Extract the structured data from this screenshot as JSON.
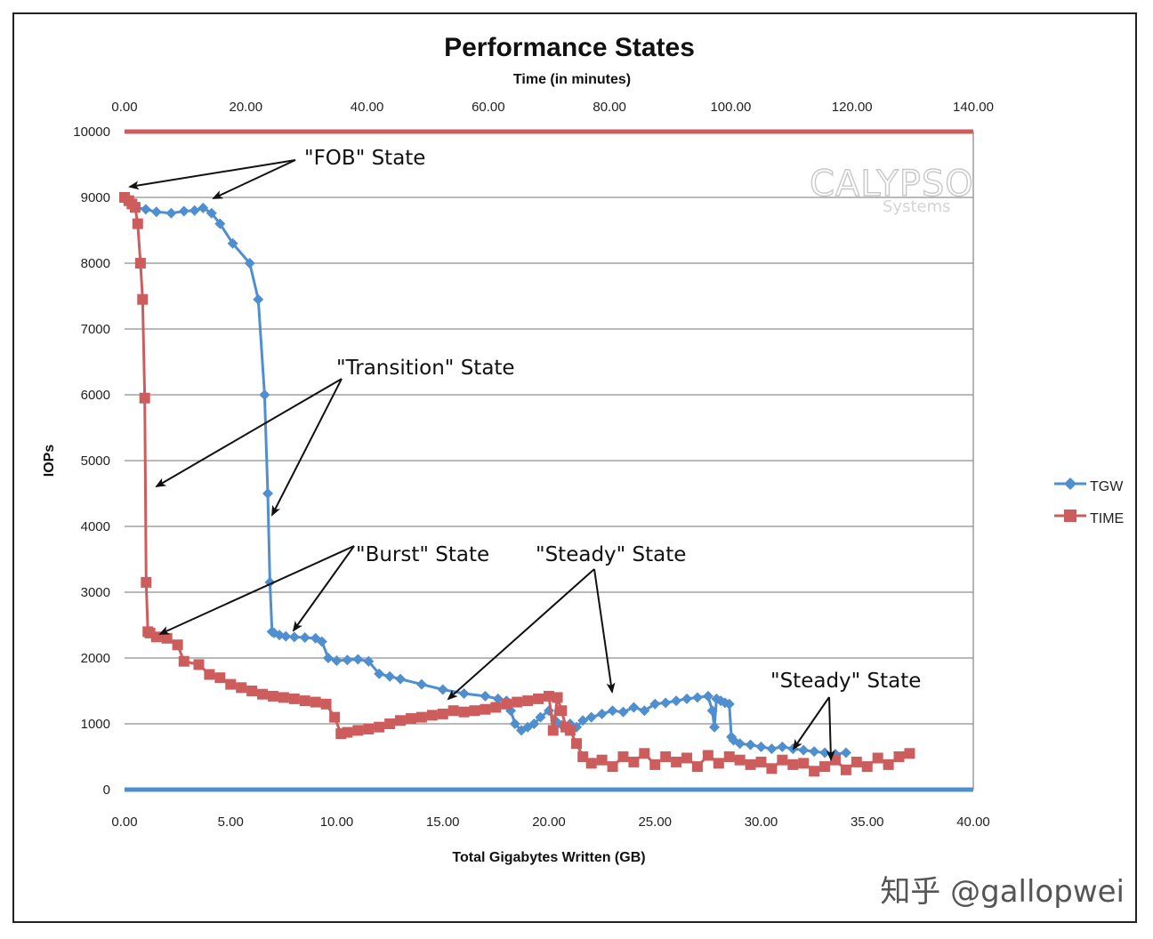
{
  "chart_data": {
    "type": "line",
    "title": "Performance States",
    "top_axis_label": "Time (in minutes)",
    "xlabel": "Total Gigabytes Written (GB)",
    "ylabel": "IOPs",
    "xlim": [
      0,
      40
    ],
    "top_xlim": [
      0,
      140
    ],
    "ylim": [
      0,
      10000
    ],
    "x_ticks": [
      "0.00",
      "5.00",
      "10.00",
      "15.00",
      "20.00",
      "25.00",
      "30.00",
      "35.00",
      "40.00"
    ],
    "top_x_ticks": [
      "0.00",
      "20.00",
      "40.00",
      "60.00",
      "80.00",
      "100.00",
      "120.00",
      "140.00"
    ],
    "y_ticks": [
      "0",
      "1000",
      "2000",
      "3000",
      "4000",
      "5000",
      "6000",
      "7000",
      "8000",
      "9000",
      "10000"
    ],
    "grid": true,
    "legend_position": "right",
    "series": [
      {
        "name": "TGW",
        "color": "#4f8fcf",
        "marker": "diamond",
        "x": [
          0,
          0.2,
          0.5,
          1,
          1.5,
          2.2,
          2.8,
          3.3,
          3.7,
          4.1,
          4.5,
          5.1,
          5.9,
          6.3,
          6.6,
          6.75,
          6.85,
          6.95,
          7.05,
          7.3,
          7.6,
          8,
          8.5,
          9,
          9.3,
          9.6,
          10,
          10.5,
          11,
          11.5,
          12,
          12.5,
          13,
          14,
          15,
          16,
          17,
          17.6,
          18,
          18.2,
          18.4,
          18.7,
          19,
          19.3,
          19.6,
          20,
          20.3,
          20.6,
          21,
          21.3,
          21.6,
          22,
          22.5,
          23,
          23.5,
          24,
          24.5,
          25,
          25.5,
          26,
          26.5,
          27,
          27.5,
          27.7,
          27.8,
          27.9,
          28.1,
          28.3,
          28.5,
          28.6,
          28.7,
          29,
          29.5,
          30,
          30.5,
          31,
          31.5,
          32,
          32.5,
          33,
          33.5,
          34
        ],
        "values": [
          9000,
          8950,
          8850,
          8820,
          8780,
          8760,
          8790,
          8800,
          8840,
          8760,
          8600,
          8300,
          8000,
          7450,
          6000,
          4500,
          3150,
          2400,
          2380,
          2350,
          2330,
          2320,
          2310,
          2300,
          2250,
          2000,
          1960,
          1970,
          1980,
          1950,
          1760,
          1720,
          1680,
          1600,
          1520,
          1460,
          1420,
          1380,
          1350,
          1200,
          1000,
          900,
          950,
          1000,
          1100,
          1200,
          1050,
          980,
          1000,
          950,
          1050,
          1100,
          1150,
          1200,
          1180,
          1250,
          1200,
          1300,
          1320,
          1350,
          1380,
          1400,
          1420,
          1200,
          950,
          1380,
          1350,
          1320,
          1300,
          800,
          750,
          700,
          680,
          650,
          620,
          650,
          620,
          600,
          580,
          560,
          540,
          560
        ]
      },
      {
        "name": "TIME",
        "color": "#cd5c5c",
        "marker": "square",
        "x": [
          0,
          0.2,
          0.35,
          0.5,
          0.62,
          0.75,
          0.85,
          0.95,
          1.02,
          1.1,
          1.2,
          1.5,
          2,
          2.5,
          2.8,
          3.5,
          4,
          4.5,
          5,
          5.5,
          6,
          6.5,
          7,
          7.5,
          8,
          8.5,
          9,
          9.5,
          9.9,
          10.2,
          10.5,
          11,
          11.5,
          12,
          12.5,
          13,
          13.5,
          14,
          14.5,
          15,
          15.5,
          16,
          16.5,
          17,
          17.5,
          18,
          18.5,
          19,
          19.5,
          20,
          20.2,
          20.4,
          20.6,
          20.8,
          21,
          21.3,
          21.6,
          22,
          22.5,
          23,
          23.5,
          24,
          24.5,
          25,
          25.5,
          26,
          26.5,
          27,
          27.5,
          28,
          28.5,
          29,
          29.5,
          30,
          30.5,
          31,
          31.5,
          32,
          32.5,
          33,
          33.5,
          34,
          34.5,
          35,
          35.5,
          36,
          36.5,
          37
        ],
        "values": [
          9000,
          8950,
          8900,
          8850,
          8600,
          8000,
          7450,
          5950,
          3150,
          2400,
          2380,
          2320,
          2300,
          2200,
          1950,
          1900,
          1750,
          1700,
          1600,
          1550,
          1500,
          1450,
          1420,
          1400,
          1380,
          1350,
          1330,
          1300,
          1100,
          850,
          870,
          900,
          920,
          950,
          1000,
          1050,
          1080,
          1100,
          1130,
          1150,
          1200,
          1180,
          1200,
          1220,
          1250,
          1300,
          1330,
          1350,
          1380,
          1420,
          900,
          1400,
          1200,
          950,
          900,
          700,
          500,
          400,
          450,
          350,
          500,
          420,
          550,
          380,
          500,
          420,
          480,
          350,
          520,
          400,
          500,
          450,
          380,
          420,
          320,
          450,
          380,
          400,
          280,
          350,
          450,
          300,
          420,
          350,
          480,
          380,
          500,
          550
        ]
      }
    ],
    "annotations": [
      "\"FOB\" State",
      "\"Transition\" State",
      "\"Burst\" State",
      "\"Steady\" State",
      "\"Steady\" State"
    ],
    "logo": {
      "name": "CALYPSO",
      "sub": "Systems"
    }
  },
  "watermark": "知乎 @gallopwei"
}
